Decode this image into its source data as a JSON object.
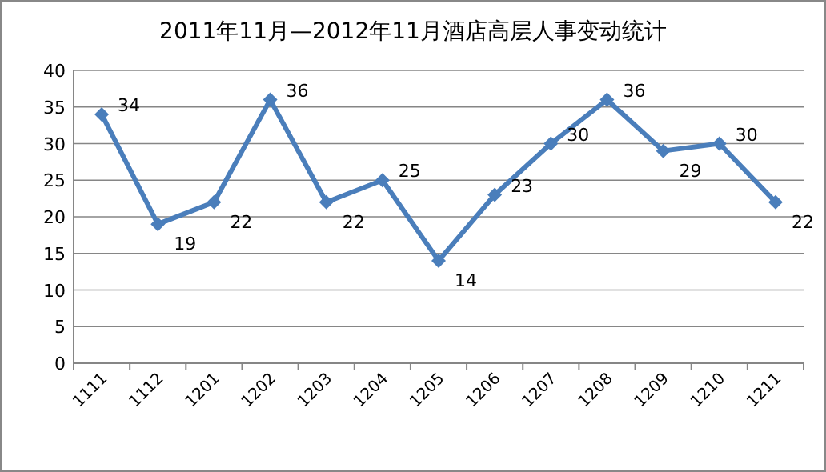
{
  "chart_data": {
    "type": "line",
    "title": "2011年11月—2012年11月酒店高层人事变动统计",
    "categories": [
      "1111",
      "1112",
      "1201",
      "1202",
      "1203",
      "1204",
      "1205",
      "1206",
      "1207",
      "1208",
      "1209",
      "1210",
      "1211"
    ],
    "values": [
      34,
      19,
      22,
      36,
      22,
      25,
      14,
      23,
      30,
      36,
      29,
      30,
      22
    ],
    "color": "#4a7ebb",
    "marker": "diamond",
    "line_style": "solid",
    "grid": "y",
    "data_labels": true,
    "ylim": [
      0,
      40
    ],
    "yticks": [
      0,
      5,
      10,
      15,
      20,
      25,
      30,
      35,
      40
    ]
  }
}
